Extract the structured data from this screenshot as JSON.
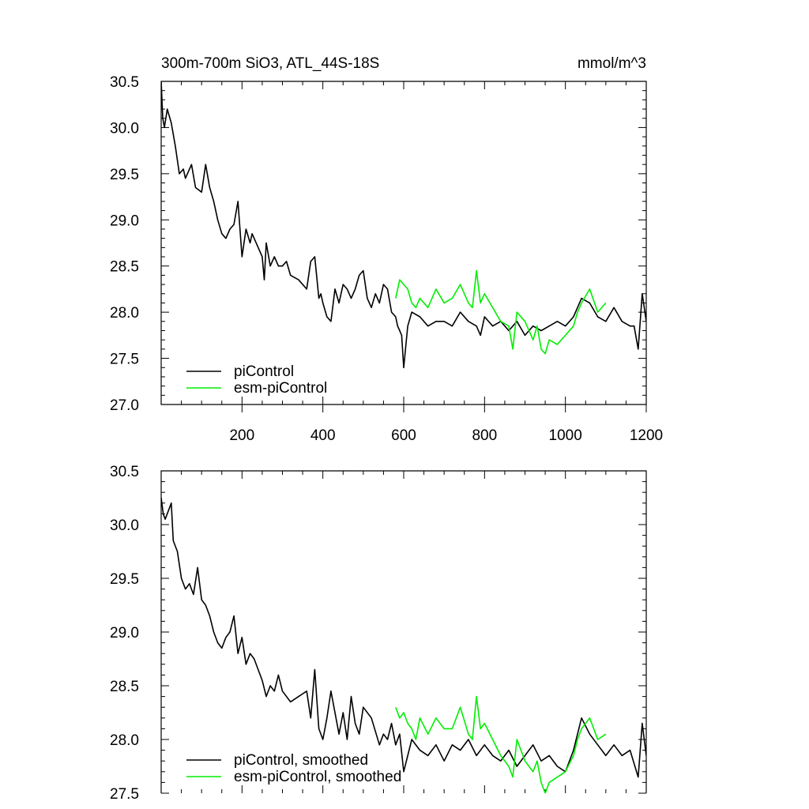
{
  "chart_data": [
    {
      "type": "line",
      "title": "300m-700m SiO3, ATL_44S-18S",
      "units_label": "mmol/m^3",
      "xlim": [
        0,
        1200
      ],
      "ylim": [
        27.0,
        30.5
      ],
      "x_ticks": [
        200,
        400,
        600,
        800,
        1000,
        1200
      ],
      "y_ticks": [
        "30.5",
        "30.0",
        "29.5",
        "29.0",
        "28.5",
        "28.0",
        "27.5",
        "27.0"
      ],
      "legend_position": "bottom-left",
      "grid": false,
      "series": [
        {
          "name": "piControl",
          "color": "#000000",
          "x": [
            0,
            4,
            8,
            15,
            25,
            35,
            45,
            55,
            60,
            75,
            85,
            100,
            110,
            120,
            130,
            140,
            150,
            160,
            170,
            180,
            190,
            200,
            210,
            220,
            225,
            240,
            250,
            255,
            260,
            270,
            280,
            290,
            300,
            310,
            320,
            340,
            360,
            370,
            380,
            390,
            395,
            400,
            410,
            420,
            430,
            440,
            450,
            460,
            470,
            480,
            490,
            500,
            510,
            520,
            530,
            540,
            550,
            560,
            570,
            580,
            585,
            590,
            595,
            600,
            610,
            620,
            640,
            660,
            680,
            700,
            720,
            740,
            760,
            780,
            790,
            800,
            820,
            840,
            860,
            880,
            900,
            920,
            940,
            960,
            980,
            1000,
            1020,
            1040,
            1060,
            1080,
            1100,
            1120,
            1140,
            1160,
            1170,
            1180,
            1190,
            1200
          ],
          "y": [
            30.5,
            30.1,
            30.0,
            30.2,
            30.05,
            29.8,
            29.5,
            29.55,
            29.45,
            29.6,
            29.35,
            29.3,
            29.6,
            29.35,
            29.2,
            29.0,
            28.85,
            28.8,
            28.9,
            28.95,
            29.2,
            28.6,
            28.9,
            28.75,
            28.85,
            28.7,
            28.6,
            28.35,
            28.75,
            28.5,
            28.6,
            28.5,
            28.5,
            28.55,
            28.4,
            28.35,
            28.25,
            28.55,
            28.6,
            28.15,
            28.2,
            28.1,
            27.95,
            27.9,
            28.25,
            28.1,
            28.3,
            28.25,
            28.15,
            28.25,
            28.4,
            28.45,
            28.15,
            28.05,
            28.2,
            28.1,
            28.3,
            28.25,
            28.0,
            27.95,
            27.85,
            27.8,
            27.75,
            27.4,
            27.85,
            28.0,
            27.95,
            27.85,
            27.9,
            27.9,
            27.85,
            28.0,
            27.9,
            27.85,
            27.75,
            27.95,
            27.85,
            27.9,
            27.8,
            27.9,
            27.75,
            27.85,
            27.8,
            27.85,
            27.9,
            27.85,
            27.95,
            28.15,
            28.1,
            27.95,
            27.9,
            28.05,
            27.9,
            27.85,
            27.85,
            27.6,
            28.2,
            27.9
          ]
        },
        {
          "name": "esm-piControl",
          "color": "#00ee00",
          "x": [
            580,
            590,
            600,
            610,
            620,
            630,
            640,
            660,
            680,
            700,
            720,
            740,
            760,
            770,
            780,
            790,
            800,
            820,
            840,
            860,
            870,
            880,
            900,
            920,
            930,
            940,
            950,
            960,
            980,
            1000,
            1020,
            1030,
            1040,
            1060,
            1080,
            1100
          ],
          "y": [
            28.15,
            28.35,
            28.3,
            28.25,
            28.1,
            28.05,
            28.15,
            28.05,
            28.25,
            28.1,
            28.15,
            28.3,
            28.1,
            28.05,
            28.45,
            28.1,
            28.2,
            28.05,
            27.9,
            27.85,
            27.6,
            28.0,
            27.9,
            27.7,
            27.85,
            27.6,
            27.55,
            27.7,
            27.65,
            27.75,
            27.85,
            28.0,
            28.1,
            28.25,
            28.0,
            28.1
          ]
        }
      ]
    },
    {
      "type": "line",
      "title": "",
      "xlim": [
        0,
        1200
      ],
      "ylim": [
        27.5,
        30.5
      ],
      "y_ticks": [
        "30.5",
        "30.0",
        "29.5",
        "29.0",
        "28.5",
        "28.0",
        "27.5"
      ],
      "legend_position": "bottom-left",
      "grid": false,
      "series": [
        {
          "name": "piControl, smoothed",
          "color": "#000000",
          "x": [
            0,
            5,
            10,
            25,
            30,
            40,
            50,
            60,
            70,
            80,
            90,
            100,
            110,
            120,
            130,
            140,
            150,
            160,
            170,
            180,
            190,
            200,
            210,
            220,
            230,
            240,
            250,
            260,
            270,
            280,
            290,
            300,
            320,
            340,
            360,
            370,
            380,
            390,
            400,
            410,
            420,
            440,
            450,
            460,
            470,
            480,
            490,
            500,
            520,
            540,
            550,
            560,
            570,
            580,
            590,
            600,
            620,
            640,
            660,
            680,
            700,
            720,
            740,
            760,
            780,
            800,
            820,
            840,
            860,
            880,
            900,
            920,
            940,
            960,
            980,
            1000,
            1020,
            1040,
            1060,
            1080,
            1100,
            1120,
            1140,
            1160,
            1180,
            1190,
            1200
          ],
          "y": [
            30.25,
            30.1,
            30.05,
            30.2,
            29.85,
            29.75,
            29.5,
            29.4,
            29.45,
            29.35,
            29.6,
            29.3,
            29.25,
            29.15,
            29.0,
            28.9,
            28.85,
            28.95,
            29.0,
            29.15,
            28.8,
            28.95,
            28.7,
            28.8,
            28.75,
            28.65,
            28.55,
            28.4,
            28.5,
            28.45,
            28.6,
            28.45,
            28.35,
            28.4,
            28.45,
            28.2,
            28.65,
            28.1,
            28.0,
            28.2,
            28.45,
            28.05,
            28.25,
            28.0,
            28.4,
            28.15,
            28.05,
            28.3,
            28.2,
            27.95,
            28.05,
            28.0,
            28.15,
            27.95,
            28.05,
            27.7,
            28.0,
            27.9,
            27.85,
            27.95,
            27.8,
            27.95,
            27.9,
            28.0,
            27.85,
            27.95,
            27.85,
            27.8,
            27.9,
            27.75,
            27.85,
            27.95,
            27.8,
            27.85,
            27.75,
            27.7,
            27.9,
            28.2,
            28.05,
            27.95,
            27.85,
            27.95,
            27.85,
            27.9,
            27.65,
            28.15,
            27.85
          ]
        },
        {
          "name": "esm-piControl, smoothed",
          "color": "#00ee00",
          "x": [
            580,
            590,
            600,
            610,
            620,
            630,
            640,
            660,
            680,
            700,
            720,
            740,
            760,
            770,
            780,
            790,
            800,
            820,
            840,
            860,
            870,
            880,
            900,
            920,
            930,
            940,
            950,
            960,
            980,
            1000,
            1020,
            1030,
            1040,
            1060,
            1080,
            1100
          ],
          "y": [
            28.3,
            28.2,
            28.25,
            28.15,
            28.1,
            28.0,
            28.2,
            28.05,
            28.2,
            28.1,
            28.1,
            28.3,
            28.05,
            28.0,
            28.4,
            28.1,
            28.15,
            28.0,
            27.85,
            27.75,
            27.65,
            28.0,
            27.8,
            27.7,
            27.8,
            27.6,
            27.5,
            27.6,
            27.65,
            27.7,
            27.85,
            28.0,
            28.1,
            28.2,
            28.0,
            28.05
          ]
        }
      ]
    }
  ]
}
